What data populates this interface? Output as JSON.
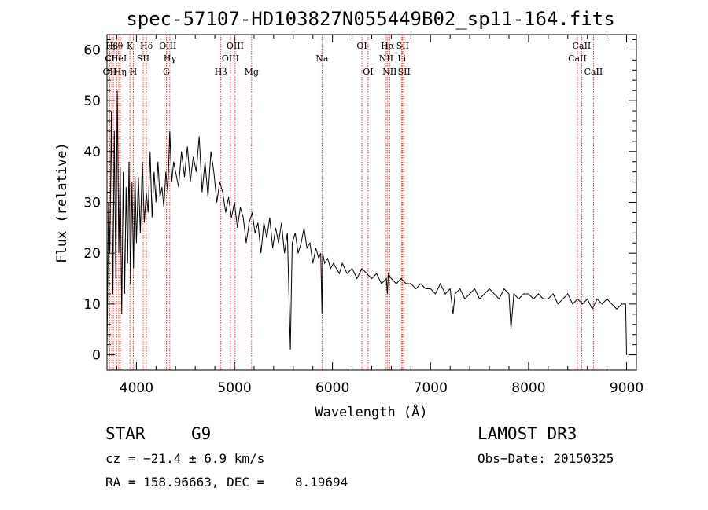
{
  "chart_data": {
    "type": "line",
    "title": "spec-57107-HD103827N055449B02_sp11-164.fits",
    "xlabel": "Wavelength (Å)",
    "ylabel": "Flux (relative)",
    "xlim": [
      3700,
      9100
    ],
    "ylim": [
      -3,
      63
    ],
    "xticks": [
      4000,
      5000,
      6000,
      7000,
      8000,
      9000
    ],
    "yticks": [
      0,
      10,
      20,
      30,
      40,
      50,
      60
    ],
    "grid": false,
    "line_color": "#ff0000",
    "lines": [
      {
        "label": "Hβ",
        "wl": 3750,
        "row": 1
      },
      {
        "label": "CIII",
        "wl": 3765,
        "row": 2
      },
      {
        "label": "OII",
        "wl": 3727,
        "row": 3
      },
      {
        "label": "Hθ",
        "wl": 3798,
        "row": 1
      },
      {
        "label": "HeI",
        "wl": 3820,
        "row": 2
      },
      {
        "label": "Hη",
        "wl": 3835,
        "row": 3
      },
      {
        "label": "K",
        "wl": 3934,
        "row": 1
      },
      {
        "label": "H",
        "wl": 3968,
        "row": 3
      },
      {
        "label": "SII",
        "wl": 4069,
        "row": 2
      },
      {
        "label": "Hδ",
        "wl": 4102,
        "row": 1
      },
      {
        "label": "G",
        "wl": 4305,
        "row": 3
      },
      {
        "label": "OIII",
        "wl": 4320,
        "row": 1
      },
      {
        "label": "Hγ",
        "wl": 4341,
        "row": 2
      },
      {
        "label": "Hβ",
        "wl": 4861,
        "row": 3
      },
      {
        "label": "OIII",
        "wl": 4959,
        "row": 2
      },
      {
        "label": "OIII",
        "wl": 5007,
        "row": 1
      },
      {
        "label": "Mg",
        "wl": 5175,
        "row": 3
      },
      {
        "label": "Na",
        "wl": 5893,
        "row": 2
      },
      {
        "label": "OI",
        "wl": 6300,
        "row": 1
      },
      {
        "label": "OI",
        "wl": 6363,
        "row": 3
      },
      {
        "label": "NII",
        "wl": 6548,
        "row": 2
      },
      {
        "label": "Hα",
        "wl": 6563,
        "row": 1
      },
      {
        "label": "NII",
        "wl": 6583,
        "row": 3
      },
      {
        "label": "Li",
        "wl": 6707,
        "row": 2
      },
      {
        "label": "SII",
        "wl": 6716,
        "row": 1
      },
      {
        "label": "SII",
        "wl": 6731,
        "row": 3
      },
      {
        "label": "CaII",
        "wl": 8498,
        "row": 2
      },
      {
        "label": "CaII",
        "wl": 8542,
        "row": 1
      },
      {
        "label": "CaII",
        "wl": 8662,
        "row": 3
      }
    ],
    "spectrum": {
      "x": [
        3700,
        3715,
        3730,
        3745,
        3760,
        3775,
        3790,
        3805,
        3820,
        3835,
        3850,
        3865,
        3880,
        3895,
        3910,
        3925,
        3940,
        3955,
        3970,
        3985,
        4000,
        4020,
        4040,
        4060,
        4080,
        4100,
        4120,
        4140,
        4160,
        4180,
        4200,
        4220,
        4240,
        4260,
        4280,
        4300,
        4320,
        4340,
        4360,
        4380,
        4400,
        4430,
        4460,
        4490,
        4520,
        4550,
        4580,
        4610,
        4640,
        4670,
        4700,
        4730,
        4760,
        4790,
        4820,
        4850,
        4880,
        4910,
        4940,
        4970,
        5000,
        5030,
        5060,
        5090,
        5120,
        5150,
        5180,
        5210,
        5240,
        5270,
        5300,
        5330,
        5360,
        5390,
        5420,
        5450,
        5480,
        5510,
        5540,
        5570,
        5580,
        5590,
        5620,
        5650,
        5680,
        5710,
        5740,
        5770,
        5800,
        5830,
        5860,
        5880,
        5893,
        5900,
        5920,
        5950,
        5980,
        6010,
        6040,
        6070,
        6100,
        6150,
        6200,
        6250,
        6300,
        6350,
        6400,
        6450,
        6500,
        6550,
        6560,
        6570,
        6600,
        6650,
        6700,
        6750,
        6800,
        6850,
        6900,
        6950,
        7000,
        7050,
        7100,
        7150,
        7200,
        7230,
        7250,
        7300,
        7350,
        7400,
        7450,
        7500,
        7550,
        7600,
        7650,
        7700,
        7750,
        7800,
        7820,
        7850,
        7900,
        7950,
        8000,
        8050,
        8100,
        8150,
        8200,
        8250,
        8300,
        8350,
        8400,
        8450,
        8500,
        8550,
        8600,
        8650,
        8700,
        8750,
        8800,
        8850,
        8900,
        8950,
        8990,
        9000
      ],
      "y": [
        0,
        30,
        20,
        48,
        12,
        44,
        15,
        52,
        20,
        37,
        8,
        36,
        12,
        33,
        18,
        38,
        14,
        34,
        17,
        36,
        22,
        35,
        24,
        38,
        26,
        32,
        28,
        40,
        27,
        36,
        30,
        38,
        31,
        33,
        29,
        36,
        32,
        44,
        34,
        38,
        36,
        33,
        40,
        35,
        41,
        34,
        39,
        36,
        43,
        32,
        38,
        31,
        40,
        36,
        30,
        34,
        32,
        28,
        31,
        27,
        30,
        25,
        29,
        27,
        22,
        26,
        28,
        24,
        26,
        20,
        26,
        23,
        27,
        21,
        25,
        22,
        26,
        20,
        24,
        1,
        12,
        22,
        24,
        20,
        22,
        25,
        21,
        22,
        18,
        21,
        19,
        20,
        8,
        20,
        18,
        19,
        17,
        18,
        17,
        16,
        18,
        16,
        17,
        15,
        17,
        16,
        15,
        16,
        14,
        15,
        12,
        16,
        15,
        14,
        15,
        14,
        14,
        13,
        14,
        13,
        13,
        12,
        14,
        12,
        13,
        8,
        12,
        13,
        11,
        12,
        13,
        11,
        12,
        13,
        12,
        11,
        13,
        12,
        5,
        12,
        11,
        12,
        12,
        11,
        12,
        11,
        11,
        12,
        10,
        11,
        12,
        10,
        11,
        10,
        11,
        9,
        11,
        10,
        11,
        10,
        9,
        10,
        10,
        0
      ]
    }
  },
  "info": {
    "class": "STAR",
    "subclass": "G9",
    "survey": "LAMOST DR3",
    "cz": "cz = −21.4 ± 6.9 km/s",
    "obsdate": "Obs−Date: 20150325",
    "coords": "RA = 158.96663, DEC =    8.19694"
  }
}
